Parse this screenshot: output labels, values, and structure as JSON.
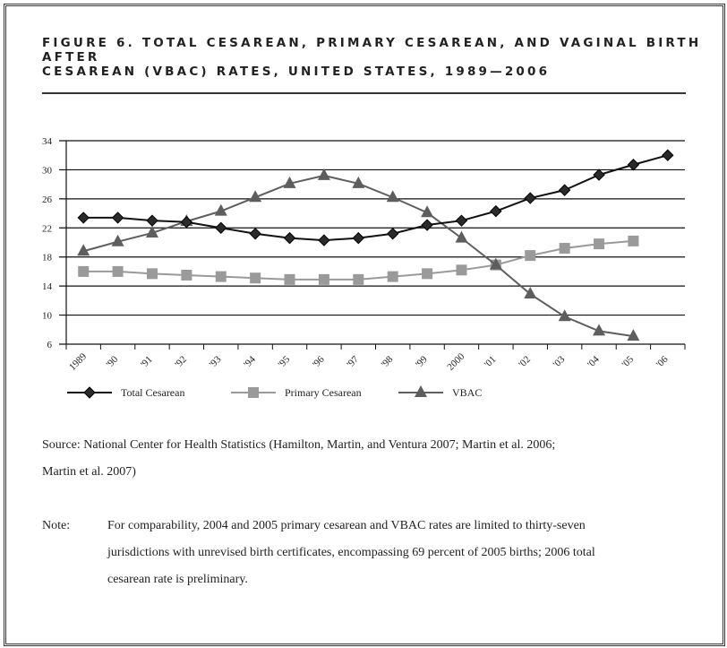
{
  "chart_data": {
    "type": "line",
    "title": "FIGURE 6. TOTAL CESAREAN, PRIMARY CESAREAN, AND VAGINAL BIRTH AFTER CESAREAN (VBAC) RATES, UNITED STATES, 1989—2006",
    "title_lines": [
      "FIGURE 6. TOTAL CESAREAN, PRIMARY CESAREAN, AND VAGINAL BIRTH AFTER",
      "CESAREAN (VBAC) RATES, UNITED STATES, 1989—2006"
    ],
    "categories": [
      "1989",
      "'90",
      "'91",
      "'92",
      "'93",
      "'94",
      "'95",
      "'96",
      "'97",
      "'98",
      "'99",
      "2000",
      "'01",
      "'02",
      "'03",
      "'04",
      "'05",
      "'06"
    ],
    "ylim": [
      6,
      34
    ],
    "yticks": [
      6,
      10,
      14,
      18,
      22,
      26,
      30,
      34
    ],
    "grid": true,
    "legend_position": "bottom",
    "series": [
      {
        "name": "Total Cesarean",
        "marker": "diamond",
        "color": "#111111",
        "values": [
          23.4,
          23.4,
          23.0,
          22.8,
          22.0,
          21.2,
          20.6,
          20.3,
          20.6,
          21.2,
          22.4,
          23.0,
          24.3,
          26.1,
          27.2,
          29.3,
          30.7,
          32.0
        ]
      },
      {
        "name": "Primary Cesarean",
        "marker": "square",
        "color": "#9a9a9a",
        "values": [
          16.0,
          16.0,
          15.7,
          15.5,
          15.3,
          15.1,
          14.9,
          14.9,
          14.9,
          15.3,
          15.7,
          16.2,
          16.9,
          18.2,
          19.2,
          19.8,
          20.2,
          null
        ]
      },
      {
        "name": "VBAC",
        "marker": "triangle",
        "color": "#5e5e5e",
        "values": [
          18.8,
          20.1,
          21.3,
          22.9,
          24.3,
          26.2,
          28.1,
          29.2,
          28.1,
          26.2,
          24.1,
          20.6,
          16.9,
          12.9,
          9.8,
          7.8,
          7.1,
          null
        ]
      }
    ]
  },
  "source": {
    "line1": "Source: National Center for Health Statistics (Hamilton, Martin, and Ventura 2007; Martin et al. 2006;",
    "line2": "Martin et al. 2007)"
  },
  "note": {
    "label": "Note:",
    "line1": "For comparability, 2004 and 2005 primary cesarean and VBAC rates are limited to thirty-seven",
    "line2": "jurisdictions with unrevised birth certificates, encompassing 69 percent of 2005 births; 2006 total",
    "line3": "cesarean rate is preliminary."
  }
}
